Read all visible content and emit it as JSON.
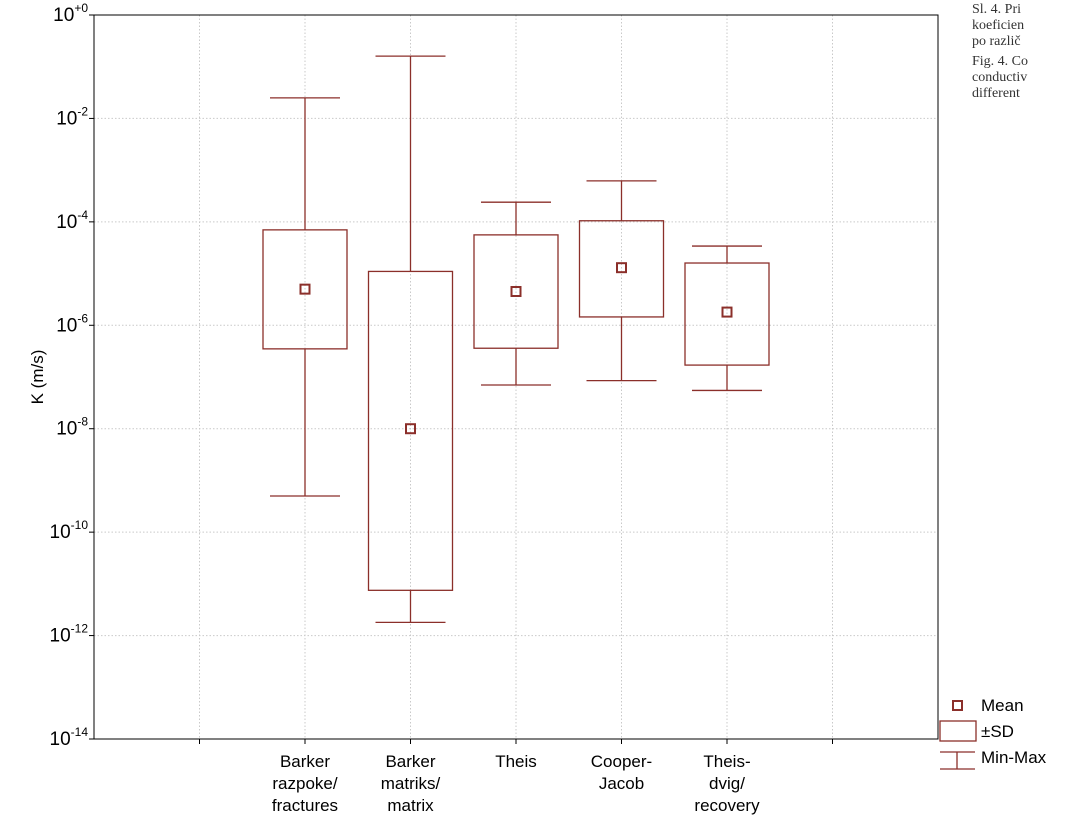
{
  "caption": {
    "sl_lines": [
      "Sl. 4. Pri",
      "koeficien",
      "po različ"
    ],
    "fig_lines": [
      "Fig. 4. Co",
      "conductiv",
      "different"
    ]
  },
  "chart_data": {
    "type": "box",
    "ylabel": "K (m/s)",
    "yscale": "log",
    "ylim_exponent": [
      -14,
      0
    ],
    "ytick_labels": [
      {
        "base": "10",
        "exp": "+0",
        "value": 1
      },
      {
        "base": "10",
        "exp": "-2",
        "value": 0.01
      },
      {
        "base": "10",
        "exp": "-4",
        "value": 0.0001
      },
      {
        "base": "10",
        "exp": "-6",
        "value": 1e-06
      },
      {
        "base": "10",
        "exp": "-8",
        "value": 1e-08
      },
      {
        "base": "10",
        "exp": "-10",
        "value": 1e-10
      },
      {
        "base": "10",
        "exp": "-12",
        "value": 1e-12
      },
      {
        "base": "10",
        "exp": "-14",
        "value": 1e-14
      }
    ],
    "grid": true,
    "color": "#8b2f2a",
    "categories": [
      {
        "lines": [
          "Barker",
          "razpoke/",
          "fractures"
        ],
        "mean": 5e-06,
        "sd_low": 3.5e-07,
        "sd_high": 7e-05,
        "min": 5e-10,
        "max": 0.025
      },
      {
        "lines": [
          "Barker",
          "matriks/",
          "matrix"
        ],
        "mean": 1e-08,
        "sd_low": 7.5e-12,
        "sd_high": 1.1e-05,
        "min": 1.8e-12,
        "max": 0.16
      },
      {
        "lines": [
          "Theis"
        ],
        "mean": 4.5e-06,
        "sd_low": 3.6e-07,
        "sd_high": 5.6e-05,
        "min": 7e-08,
        "max": 0.00024
      },
      {
        "lines": [
          "Cooper-",
          "Jacob"
        ],
        "mean": 1.3e-05,
        "sd_low": 1.45e-06,
        "sd_high": 0.000105,
        "min": 8.5e-08,
        "max": 0.00062
      },
      {
        "lines": [
          "Theis-",
          "dvig/",
          "recovery"
        ],
        "mean": 1.8e-06,
        "sd_low": 1.7e-07,
        "sd_high": 1.6e-05,
        "min": 5.5e-08,
        "max": 3.4e-05
      }
    ],
    "legend": {
      "placement": "bottom-right",
      "items": [
        {
          "symbol": "mean",
          "label": "Mean"
        },
        {
          "symbol": "sd",
          "label": "±SD"
        },
        {
          "symbol": "minmax",
          "label": "Min-Max"
        }
      ]
    }
  }
}
